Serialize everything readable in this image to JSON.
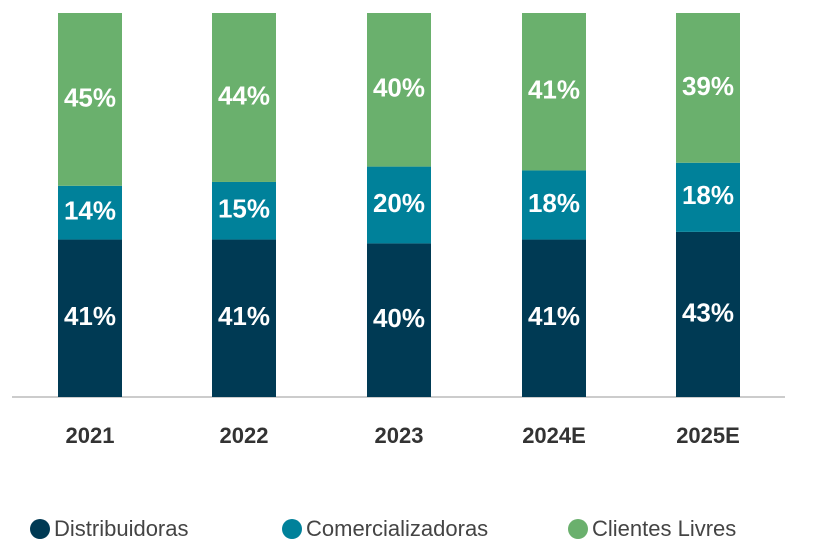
{
  "chart_data": {
    "type": "stacked_bar",
    "categories": [
      "2021",
      "2022",
      "2023",
      "2024E",
      "2025E"
    ],
    "ylim": [
      0,
      100
    ],
    "series": [
      {
        "name": "Distribuidoras",
        "color": "#003a54",
        "values": [
          41,
          41,
          40,
          41,
          43
        ],
        "value_labels": [
          "41%",
          "41%",
          "40%",
          "41%",
          "43%"
        ]
      },
      {
        "name": "Comercializadoras",
        "color": "#00819a",
        "values": [
          14,
          15,
          20,
          18,
          18
        ],
        "value_labels": [
          "14%",
          "15%",
          "20%",
          "18%",
          "18%"
        ]
      },
      {
        "name": "Clientes Livres",
        "color": "#6ab06d",
        "values": [
          45,
          44,
          40,
          41,
          39
        ],
        "value_labels": [
          "45%",
          "44%",
          "40%",
          "41%",
          "39%"
        ]
      }
    ]
  }
}
